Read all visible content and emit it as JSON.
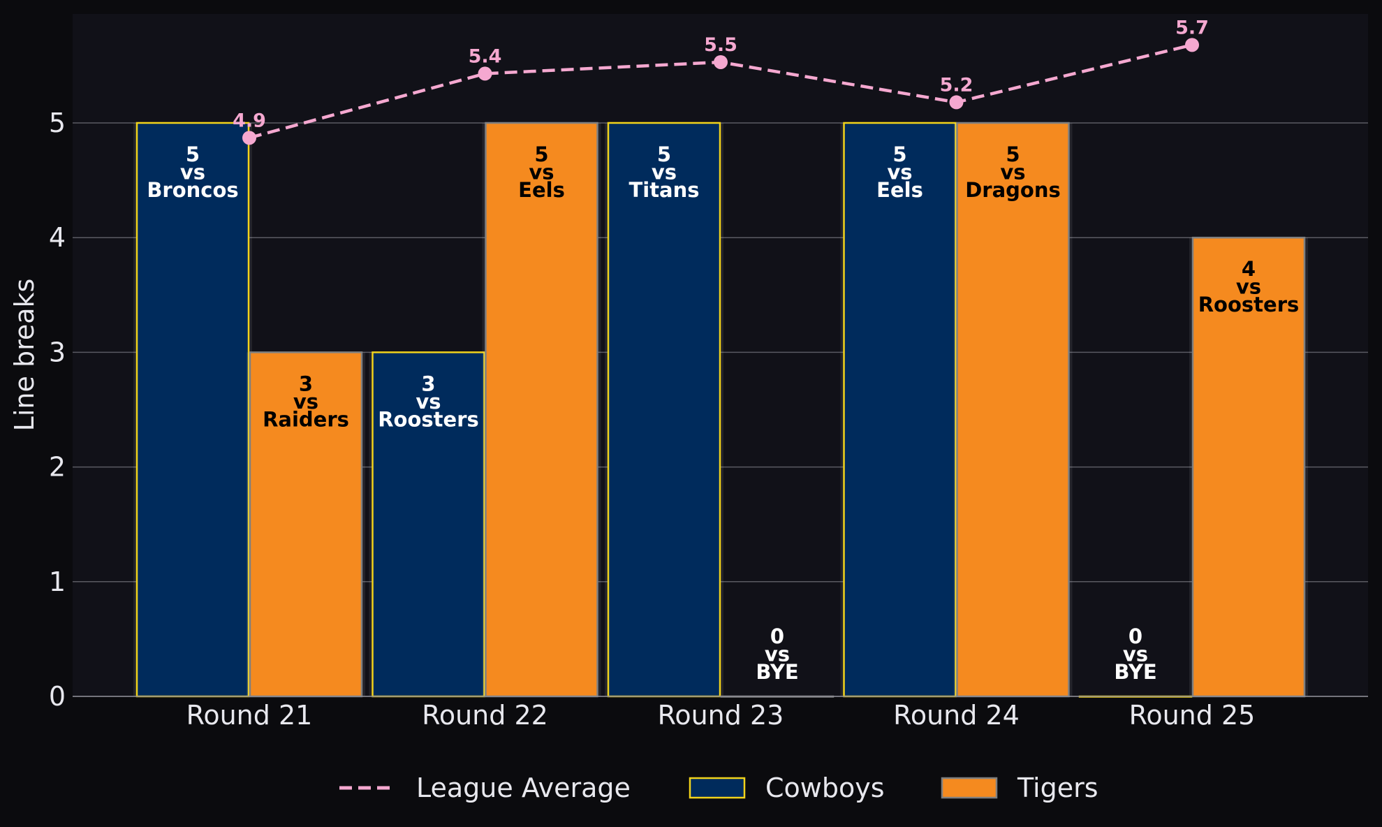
{
  "chart_data": {
    "type": "bar",
    "ylabel": "Line breaks",
    "ylim": [
      0,
      5.95
    ],
    "yticks": [
      0,
      1,
      2,
      3,
      4,
      5
    ],
    "grid": true,
    "legend_position": "bottom-center",
    "categories": [
      "Round 21",
      "Round 22",
      "Round 23",
      "Round 24",
      "Round 25"
    ],
    "series": [
      {
        "name": "Cowboys",
        "color": "#002b5c",
        "edge_color": "#f2d31b",
        "values": [
          5,
          3,
          5,
          5,
          0
        ],
        "opponents": [
          "Broncos",
          "Roosters",
          "Titans",
          "Eels",
          "BYE"
        ],
        "label_color": "#ffffff"
      },
      {
        "name": "Tigers",
        "color": "#f58a1f",
        "edge_color": "#808080",
        "values": [
          3,
          5,
          0,
          5,
          4
        ],
        "opponents": [
          "Raiders",
          "Eels",
          "BYE",
          "Dragons",
          "Roosters"
        ],
        "label_color": "#000000"
      }
    ],
    "line": {
      "name": "League Average",
      "color": "#f5a8d0",
      "style": "dashed",
      "values": [
        4.87,
        5.43,
        5.53,
        5.18,
        5.68
      ],
      "labels": [
        "4.9",
        "5.4",
        "5.5",
        "5.2",
        "5.7"
      ]
    },
    "vs_text": "vs",
    "colors": {
      "background": "#0b0b0e",
      "plot_background": "#111118",
      "grid": "#5a5a62",
      "text": "#e8e8ee"
    }
  }
}
